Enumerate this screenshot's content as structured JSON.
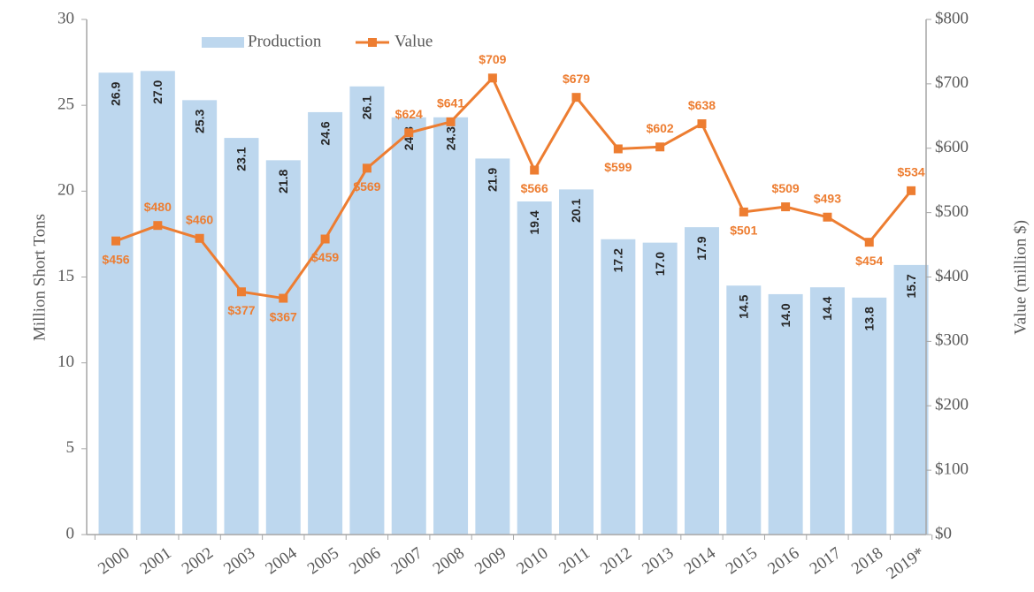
{
  "chart_data": {
    "type": "bar-line",
    "categories": [
      "2000",
      "2001",
      "2002",
      "2003",
      "2004",
      "2005",
      "2006",
      "2007",
      "2008",
      "2009",
      "2010",
      "2011",
      "2012",
      "2013",
      "2014",
      "2015",
      "2016",
      "2017",
      "2018",
      "2019*"
    ],
    "series": [
      {
        "name": "Production",
        "type": "bar",
        "color": "#bdd7ee",
        "values": [
          26.9,
          27.0,
          25.3,
          23.1,
          21.8,
          24.6,
          26.1,
          24.3,
          24.3,
          21.9,
          19.4,
          20.1,
          17.2,
          17.0,
          17.9,
          14.5,
          14.0,
          14.4,
          13.8,
          15.7
        ],
        "value_labels": [
          "26.9",
          "27.0",
          "25.3",
          "23.1",
          "21.8",
          "24.6",
          "26.1",
          "24.3",
          "24.3",
          "21.9",
          "19.4",
          "20.1",
          "17.2",
          "17.0",
          "17.9",
          "14.5",
          "14.0",
          "14.4",
          "13.8",
          "15.7"
        ]
      },
      {
        "name": "Value",
        "type": "line",
        "axis": "y2",
        "color": "#ed7d31",
        "values": [
          456,
          480,
          460,
          377,
          367,
          459,
          569,
          624,
          641,
          709,
          566,
          679,
          599,
          602,
          638,
          501,
          509,
          493,
          454,
          534
        ],
        "value_labels": [
          "$456",
          "$480",
          "$460",
          "$377",
          "$367",
          "$459",
          "$569",
          "$624",
          "$641",
          "$709",
          "$566",
          "$679",
          "$599",
          "$602",
          "$638",
          "$501",
          "$509",
          "$493",
          "$454",
          "$534"
        ]
      }
    ],
    "y_label": "Million Short Tons",
    "y2_label": "Value (million $)",
    "ylim": [
      0,
      30
    ],
    "yticks": [
      0,
      5,
      10,
      15,
      20,
      25,
      30
    ],
    "y2lim": [
      0,
      800
    ],
    "y2ticks": [
      {
        "value": 0,
        "label": "$0"
      },
      {
        "value": 100,
        "label": "$100"
      },
      {
        "value": 200,
        "label": "$200"
      },
      {
        "value": 300,
        "label": "$300"
      },
      {
        "value": 400,
        "label": "$400"
      },
      {
        "value": 500,
        "label": "$500"
      },
      {
        "value": 600,
        "label": "$600"
      },
      {
        "value": 700,
        "label": "$700"
      },
      {
        "value": 800,
        "label": "$800"
      }
    ]
  }
}
